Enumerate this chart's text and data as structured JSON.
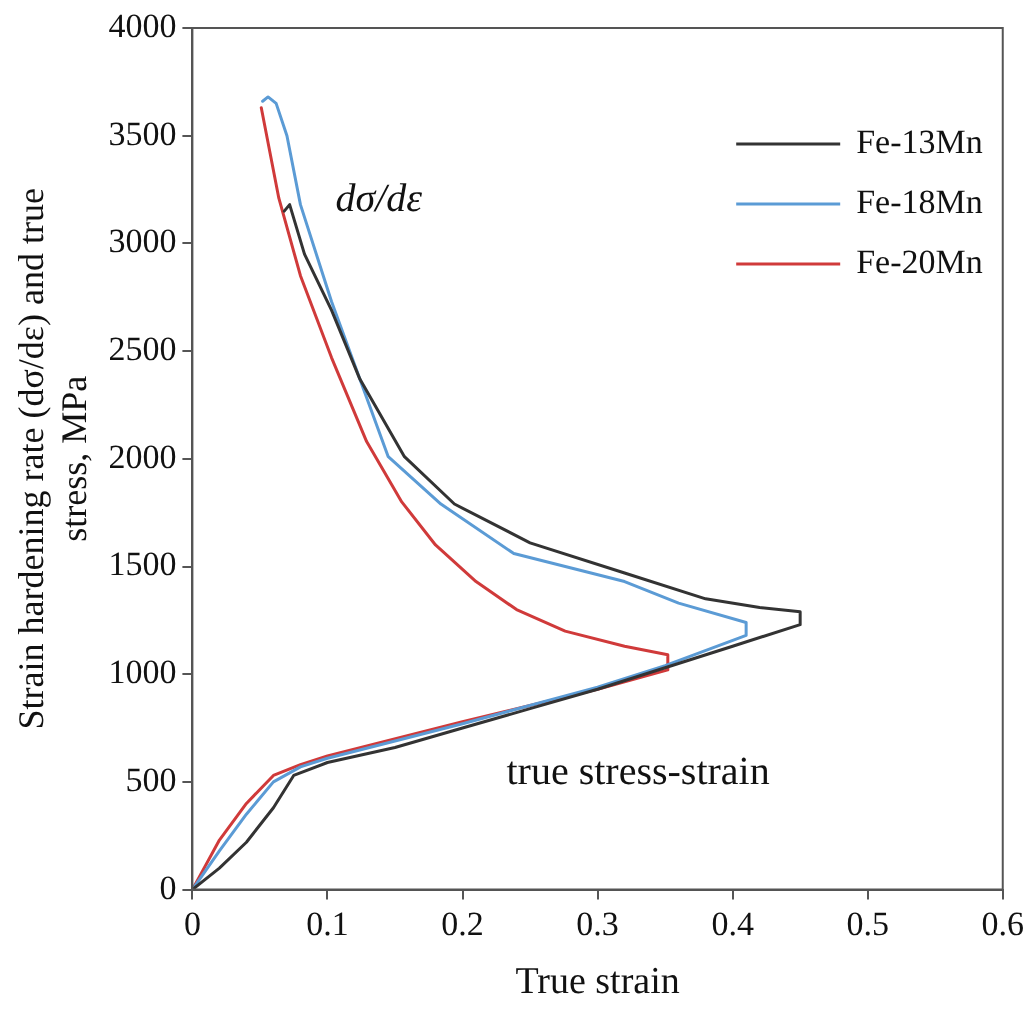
{
  "chart_data": {
    "type": "line",
    "xlabel": "True strain",
    "ylabel": "Strain hardening rate (dσ/dε) and true stress, MPa",
    "xlim": [
      0,
      0.6
    ],
    "xticks": [
      0,
      0.1,
      0.2,
      0.3,
      0.4,
      0.5,
      0.6
    ],
    "ylim": [
      0,
      4000
    ],
    "yticks": [
      0,
      500,
      1000,
      1500,
      2000,
      2500,
      3000,
      3500,
      4000
    ],
    "grid": false,
    "legend": "top right",
    "marker": "none",
    "line_style": "solid",
    "annotations": [
      "dσ/dε",
      "true stress-strain"
    ],
    "series": [
      {
        "name": "Fe-13Mn",
        "color": "#333333",
        "x": [
          0,
          0.02,
          0.04,
          0.06,
          0.075,
          0.1,
          0.15,
          0.2,
          0.25,
          0.3,
          0.35,
          0.4,
          0.45,
          0.45,
          0.42,
          0.38,
          0.32,
          0.25,
          0.194,
          0.157,
          0.124,
          0.103,
          0.083,
          0.072,
          0.068
        ],
        "values": [
          0,
          100,
          220,
          380,
          530,
          590,
          660,
          750,
          840,
          930,
          1030,
          1130,
          1230,
          1290,
          1310,
          1350,
          1470,
          1610,
          1790,
          2010,
          2370,
          2690,
          2950,
          3180,
          3150
        ]
      },
      {
        "name": "Fe-18Mn",
        "color": "#5b9bd5",
        "x": [
          0,
          0.02,
          0.04,
          0.06,
          0.08,
          0.1,
          0.2,
          0.3,
          0.35,
          0.41,
          0.41,
          0.36,
          0.32,
          0.238,
          0.184,
          0.145,
          0.103,
          0.08,
          0.07,
          0.062,
          0.056,
          0.052
        ],
        "values": [
          0,
          180,
          350,
          500,
          570,
          610,
          770,
          940,
          1040,
          1180,
          1240,
          1330,
          1430,
          1560,
          1790,
          2010,
          2730,
          3180,
          3500,
          3650,
          3680,
          3660
        ]
      },
      {
        "name": "Fe-20Mn",
        "color": "#d03a3a",
        "x": [
          0,
          0.02,
          0.04,
          0.06,
          0.08,
          0.1,
          0.2,
          0.3,
          0.352,
          0.352,
          0.32,
          0.276,
          0.24,
          0.21,
          0.18,
          0.155,
          0.129,
          0.103,
          0.08,
          0.064,
          0.051
        ],
        "values": [
          0,
          230,
          400,
          530,
          580,
          620,
          780,
          930,
          1020,
          1090,
          1130,
          1200,
          1300,
          1430,
          1600,
          1800,
          2080,
          2470,
          2850,
          3210,
          3630
        ]
      }
    ]
  }
}
